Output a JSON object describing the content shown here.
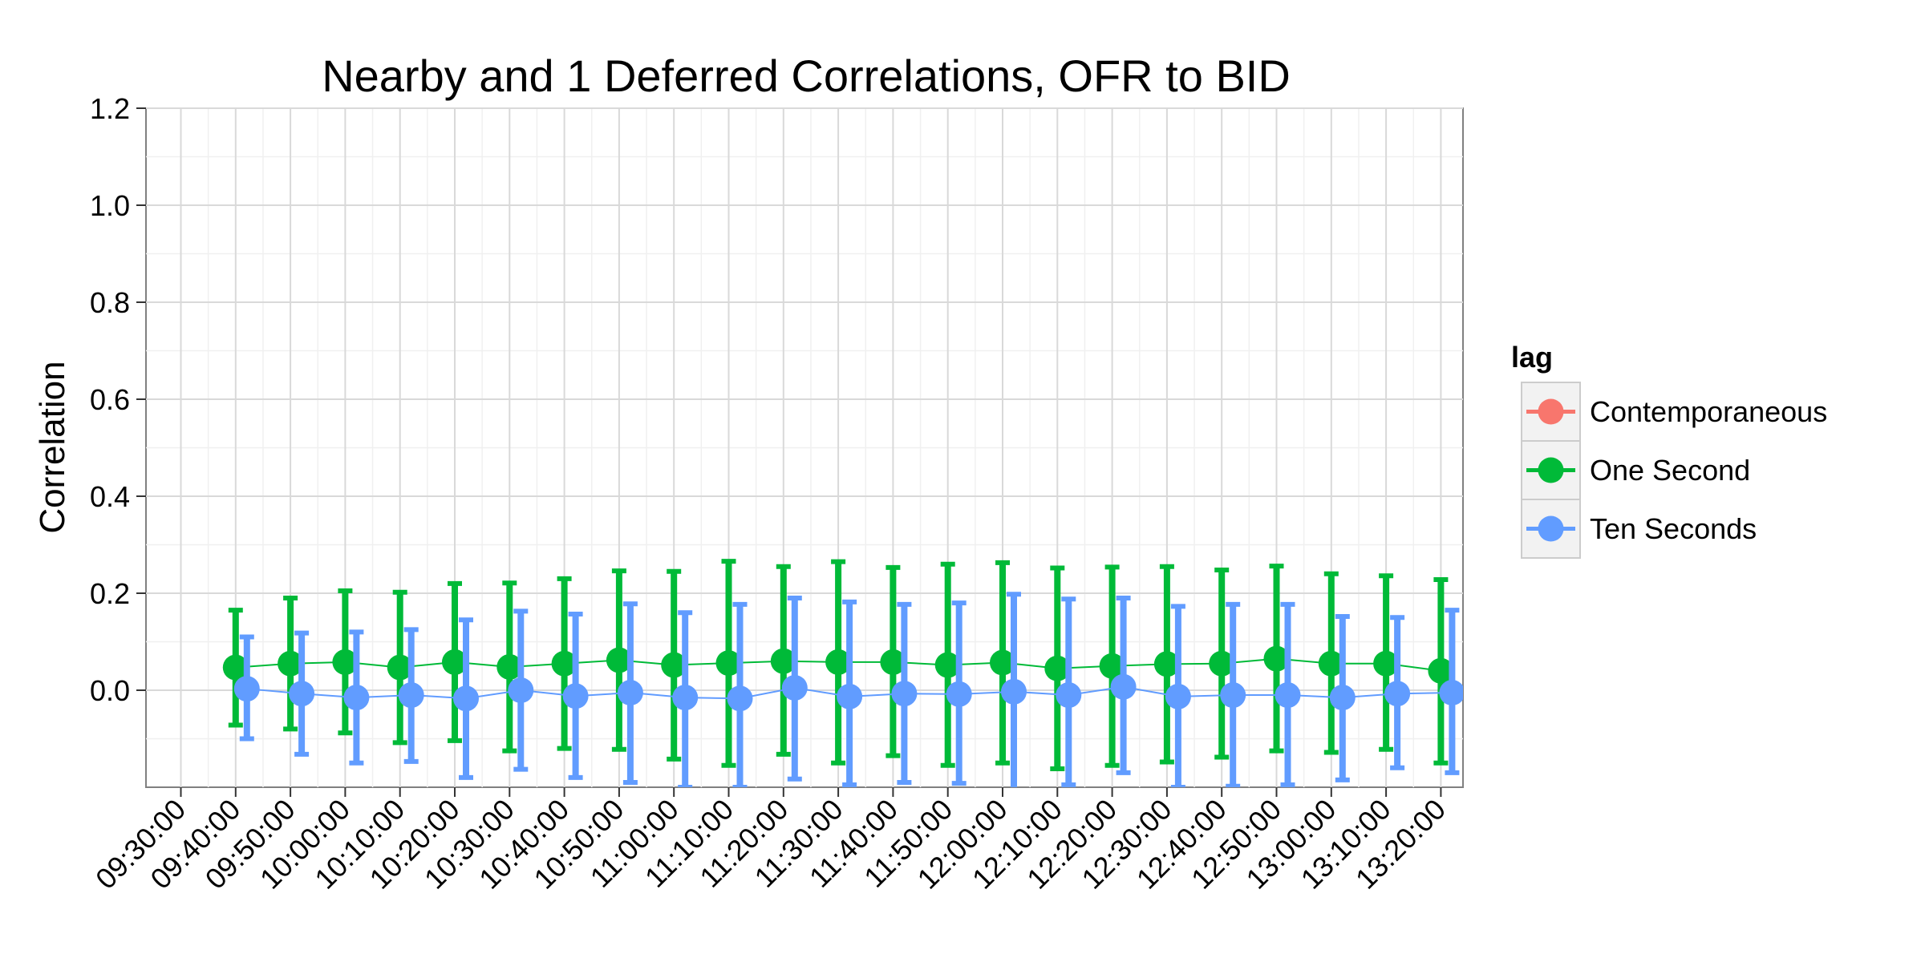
{
  "chart_data": {
    "type": "line",
    "title": "Nearby and 1 Deferred Correlations, OFR to BID",
    "xlabel": "",
    "ylabel": "Correlation",
    "categories": [
      "09:30:00",
      "09:40:00",
      "09:50:00",
      "10:00:00",
      "10:10:00",
      "10:20:00",
      "10:30:00",
      "10:40:00",
      "10:50:00",
      "11:00:00",
      "11:10:00",
      "11:20:00",
      "11:30:00",
      "11:40:00",
      "11:50:00",
      "12:00:00",
      "12:10:00",
      "12:20:00",
      "12:30:00",
      "12:40:00",
      "12:50:00",
      "13:00:00",
      "13:10:00",
      "13:20:00"
    ],
    "ylim": [
      -0.2,
      1.2
    ],
    "yticks": [
      "0.0",
      "0.2",
      "0.4",
      "0.6",
      "0.8",
      "1.0",
      "1.2"
    ],
    "legend": {
      "title": "lag",
      "position": "right",
      "entries": [
        "Contemporaneous",
        "One Second",
        "Ten Seconds"
      ],
      "colors": [
        "#F8766D",
        "#00BA38",
        "#619CFF"
      ]
    },
    "grid": true,
    "series": [
      {
        "name": "One Second",
        "color": "#00BA38",
        "x": [
          "09:40:00",
          "09:50:00",
          "10:00:00",
          "10:10:00",
          "10:20:00",
          "10:30:00",
          "10:40:00",
          "10:50:00",
          "11:00:00",
          "11:10:00",
          "11:20:00",
          "11:30:00",
          "11:40:00",
          "11:50:00",
          "12:00:00",
          "12:10:00",
          "12:20:00",
          "12:30:00",
          "12:40:00",
          "12:50:00",
          "13:00:00",
          "13:10:00",
          "13:20:00"
        ],
        "values": [
          0.047,
          0.055,
          0.058,
          0.047,
          0.058,
          0.048,
          0.055,
          0.062,
          0.052,
          0.056,
          0.06,
          0.058,
          0.058,
          0.052,
          0.057,
          0.045,
          0.05,
          0.054,
          0.055,
          0.065,
          0.055,
          0.055,
          0.04
        ],
        "upper": [
          0.165,
          0.19,
          0.205,
          0.202,
          0.22,
          0.221,
          0.23,
          0.246,
          0.245,
          0.266,
          0.255,
          0.265,
          0.253,
          0.26,
          0.263,
          0.252,
          0.254,
          0.255,
          0.248,
          0.256,
          0.24,
          0.236,
          0.228
        ],
        "lower": [
          -0.072,
          -0.08,
          -0.088,
          -0.108,
          -0.104,
          -0.125,
          -0.12,
          -0.122,
          -0.142,
          -0.155,
          -0.132,
          -0.15,
          -0.135,
          -0.155,
          -0.15,
          -0.162,
          -0.155,
          -0.148,
          -0.138,
          -0.125,
          -0.128,
          -0.122,
          -0.15
        ]
      },
      {
        "name": "Ten Seconds",
        "color": "#619CFF",
        "x": [
          "09:40:00",
          "09:50:00",
          "10:00:00",
          "10:10:00",
          "10:20:00",
          "10:30:00",
          "10:40:00",
          "10:50:00",
          "11:00:00",
          "11:10:00",
          "11:20:00",
          "11:30:00",
          "11:40:00",
          "11:50:00",
          "12:00:00",
          "12:10:00",
          "12:20:00",
          "12:30:00",
          "12:40:00",
          "12:50:00",
          "13:00:00",
          "13:10:00",
          "13:20:00"
        ],
        "values": [
          0.003,
          -0.007,
          -0.015,
          -0.01,
          -0.017,
          0.0,
          -0.012,
          -0.005,
          -0.015,
          -0.017,
          0.005,
          -0.013,
          -0.007,
          -0.008,
          -0.003,
          -0.01,
          0.007,
          -0.013,
          -0.01,
          -0.01,
          -0.015,
          -0.007,
          -0.005
        ],
        "upper": [
          0.11,
          0.118,
          0.12,
          0.125,
          0.145,
          0.163,
          0.157,
          0.178,
          0.16,
          0.177,
          0.19,
          0.182,
          0.177,
          0.18,
          0.198,
          0.188,
          0.19,
          0.173,
          0.177,
          0.177,
          0.152,
          0.15,
          0.165
        ],
        "lower": [
          -0.1,
          -0.132,
          -0.15,
          -0.147,
          -0.18,
          -0.163,
          -0.18,
          -0.19,
          -0.2,
          -0.2,
          -0.183,
          -0.195,
          -0.19,
          -0.192,
          -0.205,
          -0.195,
          -0.17,
          -0.2,
          -0.198,
          -0.195,
          -0.185,
          -0.16,
          -0.17
        ]
      }
    ]
  }
}
